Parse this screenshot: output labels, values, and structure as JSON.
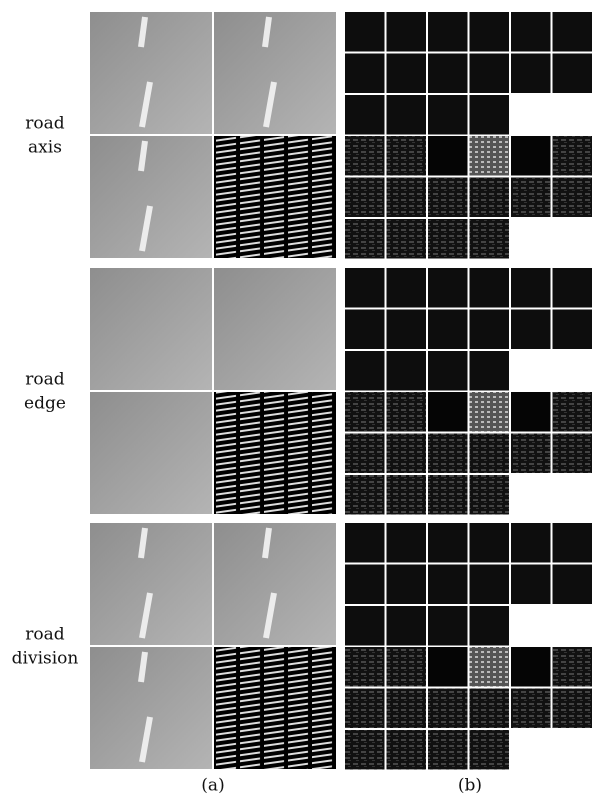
{
  "rows": [
    {
      "label": [
        "road",
        "axis"
      ]
    },
    {
      "label": [
        "road",
        "edge"
      ]
    },
    {
      "label": [
        "road",
        "division"
      ]
    }
  ],
  "captions": [
    "(a)",
    "(b)"
  ]
}
